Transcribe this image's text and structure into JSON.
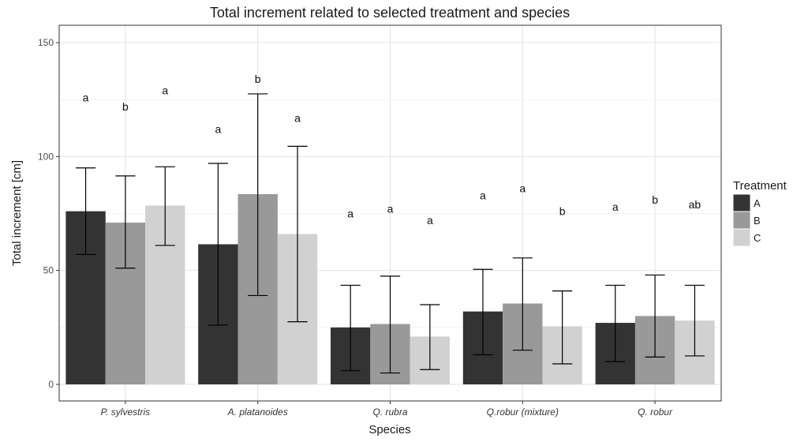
{
  "chart_data": {
    "type": "bar",
    "title": "Total increment related to selected treatment and species",
    "xlabel": "Species",
    "ylabel": "Total increment [cm]",
    "ylim": [
      0,
      150
    ],
    "yticks": [
      0,
      50,
      100,
      150
    ],
    "grid": true,
    "legend": {
      "title": "Treatment",
      "position": "right"
    },
    "categories": [
      "P. sylvestris",
      "A. platanoides",
      "Q. rubra",
      "Q.robur (mixture)",
      "Q. robur"
    ],
    "series": [
      {
        "name": "A",
        "color": "#333333",
        "values": [
          76,
          61.5,
          25,
          32,
          27
        ],
        "error_low": [
          57,
          26,
          6,
          13,
          10
        ],
        "error_high": [
          95,
          97,
          43.5,
          50.5,
          43.5
        ],
        "letters": [
          "a",
          "a",
          "a",
          "a",
          "a"
        ],
        "letter_y": [
          126,
          112,
          75,
          83,
          78
        ]
      },
      {
        "name": "B",
        "color": "#999999",
        "values": [
          71,
          83.5,
          26.5,
          35.5,
          30
        ],
        "error_low": [
          51,
          39,
          5,
          15,
          12
        ],
        "error_high": [
          91.5,
          127.5,
          47.5,
          55.5,
          48
        ],
        "letters": [
          "b",
          "b",
          "a",
          "a",
          "b"
        ],
        "letter_y": [
          122,
          134,
          77,
          86,
          81
        ]
      },
      {
        "name": "C",
        "color": "#d1d1d1",
        "values": [
          78.5,
          66,
          21,
          25.5,
          28
        ],
        "error_low": [
          61,
          27.5,
          6.5,
          9,
          12.5
        ],
        "error_high": [
          95.5,
          104.5,
          35,
          41,
          43.5
        ],
        "letters": [
          "a",
          "a",
          "a",
          "b",
          "ab"
        ],
        "letter_y": [
          129,
          117,
          72,
          76,
          79
        ]
      }
    ]
  }
}
